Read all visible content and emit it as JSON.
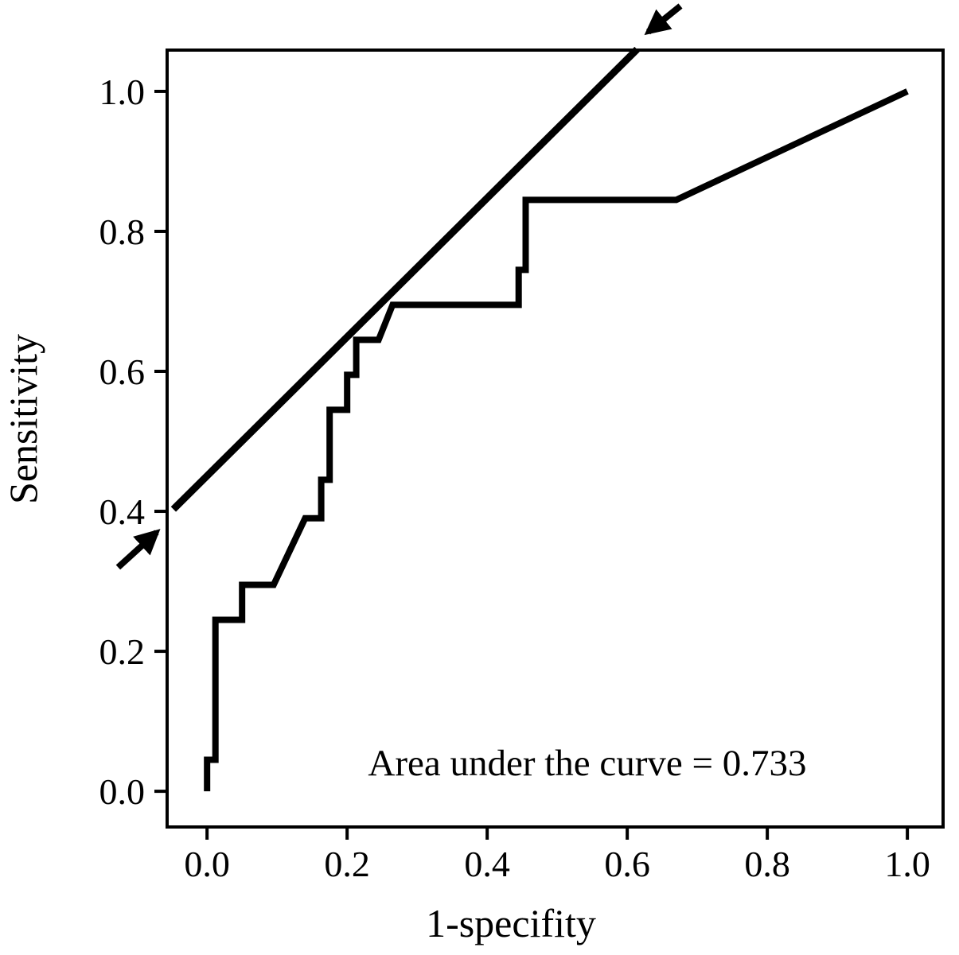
{
  "figure": {
    "background": "#ffffff",
    "line_color": "#000000"
  },
  "chart_data": {
    "type": "line",
    "title": "",
    "xlabel": "1-specifity",
    "ylabel": "Sensitivity",
    "annotation": "Area under the curve = 0.733",
    "auc": 0.733,
    "xlim": [
      -0.057,
      1.051
    ],
    "ylim": [
      -0.051,
      1.059
    ],
    "grid": false,
    "legend": "none",
    "xticks": [
      {
        "value": 0.0,
        "label": "0.0"
      },
      {
        "value": 0.2,
        "label": "0.2"
      },
      {
        "value": 0.4,
        "label": "0.4"
      },
      {
        "value": 0.6,
        "label": "0.6"
      },
      {
        "value": 0.8,
        "label": "0.8"
      },
      {
        "value": 1.0,
        "label": "1.0"
      }
    ],
    "yticks": [
      {
        "value": 0.0,
        "label": "0.0"
      },
      {
        "value": 0.2,
        "label": "0.2"
      },
      {
        "value": 0.4,
        "label": "0.4"
      },
      {
        "value": 0.6,
        "label": "0.6"
      },
      {
        "value": 0.8,
        "label": "0.8"
      },
      {
        "value": 1.0,
        "label": "1.0"
      }
    ],
    "series": [
      {
        "name": "ROC curve",
        "points": [
          [
            0.0,
            0.0
          ],
          [
            0.0,
            0.045
          ],
          [
            0.012,
            0.045
          ],
          [
            0.012,
            0.245
          ],
          [
            0.05,
            0.245
          ],
          [
            0.05,
            0.295
          ],
          [
            0.095,
            0.295
          ],
          [
            0.14,
            0.39
          ],
          [
            0.163,
            0.39
          ],
          [
            0.163,
            0.445
          ],
          [
            0.175,
            0.445
          ],
          [
            0.175,
            0.545
          ],
          [
            0.2,
            0.545
          ],
          [
            0.2,
            0.595
          ],
          [
            0.213,
            0.595
          ],
          [
            0.213,
            0.645
          ],
          [
            0.245,
            0.645
          ],
          [
            0.265,
            0.695
          ],
          [
            0.445,
            0.695
          ],
          [
            0.445,
            0.745
          ],
          [
            0.455,
            0.745
          ],
          [
            0.455,
            0.845
          ],
          [
            0.67,
            0.845
          ],
          [
            1.0,
            1.0
          ]
        ]
      },
      {
        "name": "cut-off tangent line",
        "points": [
          [
            -0.048,
            0.403
          ],
          [
            0.614,
            1.06
          ]
        ]
      }
    ],
    "arrows": [
      {
        "name": "upper-cutoff-arrow",
        "from": [
          0.676,
          1.122
        ],
        "to": [
          0.63,
          1.085
        ]
      },
      {
        "name": "lower-cutoff-arrow",
        "from": [
          -0.127,
          0.32
        ],
        "to": [
          -0.072,
          0.37
        ]
      }
    ],
    "annotation_pos": [
      0.543,
      0.03
    ],
    "xlabel_pos": [
      0.435,
      -0.205
    ],
    "ylabel_pos": [
      -0.245,
      0.525
    ]
  }
}
